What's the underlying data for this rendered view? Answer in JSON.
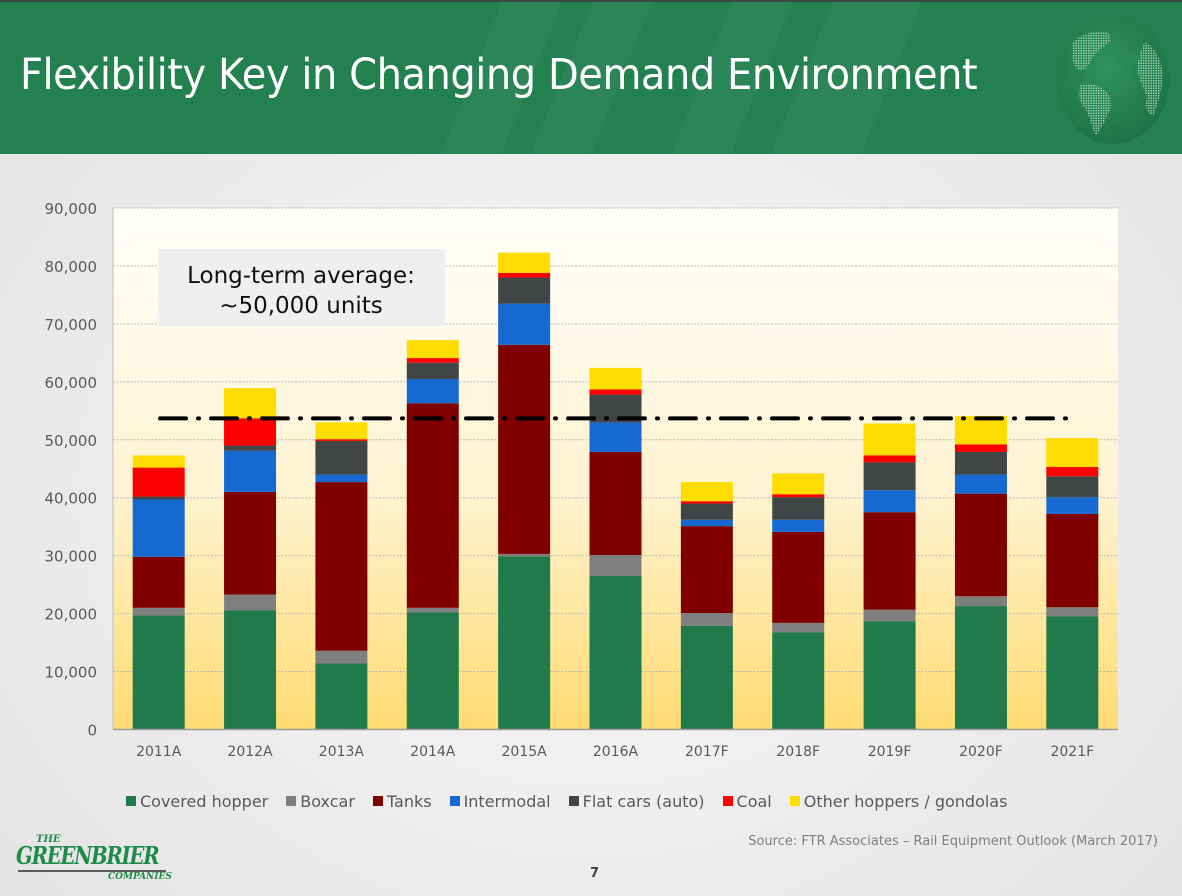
{
  "header": {
    "title": "Flexibility Key in Changing Demand Environment",
    "globe_icon": "globe-icon"
  },
  "colors": {
    "header_green": "#23804f",
    "covered_hopper": "#217a4b",
    "boxcar": "#7f7f7f",
    "tanks": "#800000",
    "intermodal": "#1769d2",
    "flat_cars": "#404546",
    "coal": "#ff0000",
    "other": "#ffdc00"
  },
  "annotation": {
    "line1": "Long-term average:",
    "line2": "~50,000 units"
  },
  "chart_data": {
    "type": "bar",
    "stacked": true,
    "title": "",
    "xlabel": "",
    "ylabel": "",
    "ylim": [
      0,
      90000
    ],
    "yticks": [
      0,
      10000,
      20000,
      30000,
      40000,
      50000,
      60000,
      70000,
      80000,
      90000
    ],
    "ytick_labels": [
      "0",
      "10,000",
      "20,000",
      "30,000",
      "40,000",
      "50,000",
      "60,000",
      "70,000",
      "80,000",
      "90,000"
    ],
    "grid": true,
    "legend_position": "bottom",
    "categories": [
      "2011A",
      "2012A",
      "2013A",
      "2014A",
      "2015A",
      "2016A",
      "2017F",
      "2018F",
      "2019F",
      "2020F",
      "2021F"
    ],
    "series": [
      {
        "name": "Covered hopper",
        "color": "#217a4b",
        "values": [
          19700,
          20600,
          11400,
          20200,
          29900,
          26500,
          17900,
          16800,
          18700,
          21300,
          19500
        ]
      },
      {
        "name": "Boxcar",
        "color": "#7f7f7f",
        "values": [
          1300,
          2700,
          2200,
          800,
          400,
          3600,
          2200,
          1600,
          2000,
          1700,
          1600
        ]
      },
      {
        "name": "Tanks",
        "color": "#800000",
        "values": [
          8800,
          17700,
          29100,
          35300,
          36100,
          17800,
          15000,
          15700,
          16800,
          17700,
          16100
        ]
      },
      {
        "name": "Intermodal",
        "color": "#1769d2",
        "values": [
          9900,
          7100,
          1300,
          4200,
          7100,
          5100,
          1100,
          2100,
          3800,
          3300,
          2900
        ]
      },
      {
        "name": "Flat cars (auto)",
        "color": "#404546",
        "values": [
          500,
          900,
          5800,
          2800,
          4500,
          4800,
          2800,
          3900,
          4800,
          3900,
          3600
        ]
      },
      {
        "name": "Coal",
        "color": "#ff0000",
        "values": [
          5000,
          4700,
          300,
          800,
          800,
          900,
          400,
          500,
          1200,
          1300,
          1600
        ]
      },
      {
        "name": "Other hoppers / gondolas",
        "color": "#ffdc00",
        "values": [
          2100,
          5200,
          2900,
          3100,
          3500,
          3700,
          3300,
          3600,
          5500,
          4900,
          5000
        ]
      }
    ],
    "reference_line": {
      "label": "Long-term average: ~50,000 units",
      "value": 53700,
      "style": "dash-dot",
      "color": "#000000"
    },
    "annotations": [
      "Long-term average:",
      "~50,000 units"
    ]
  },
  "legend": [
    {
      "label": "Covered hopper",
      "color": "#217a4b"
    },
    {
      "label": "Boxcar",
      "color": "#7f7f7f"
    },
    {
      "label": "Tanks",
      "color": "#800000"
    },
    {
      "label": "Intermodal",
      "color": "#1769d2"
    },
    {
      "label": "Flat cars (auto)",
      "color": "#404546"
    },
    {
      "label": "Coal",
      "color": "#ff0000"
    },
    {
      "label": "Other hoppers / gondolas",
      "color": "#ffdc00"
    }
  ],
  "footer": {
    "source": "Source: FTR Associates – Rail Equipment Outlook (March 2017)",
    "page_number": "7",
    "logo": {
      "the": "THE",
      "main": "GREENBRIER",
      "companies": "COMPANIES"
    }
  }
}
